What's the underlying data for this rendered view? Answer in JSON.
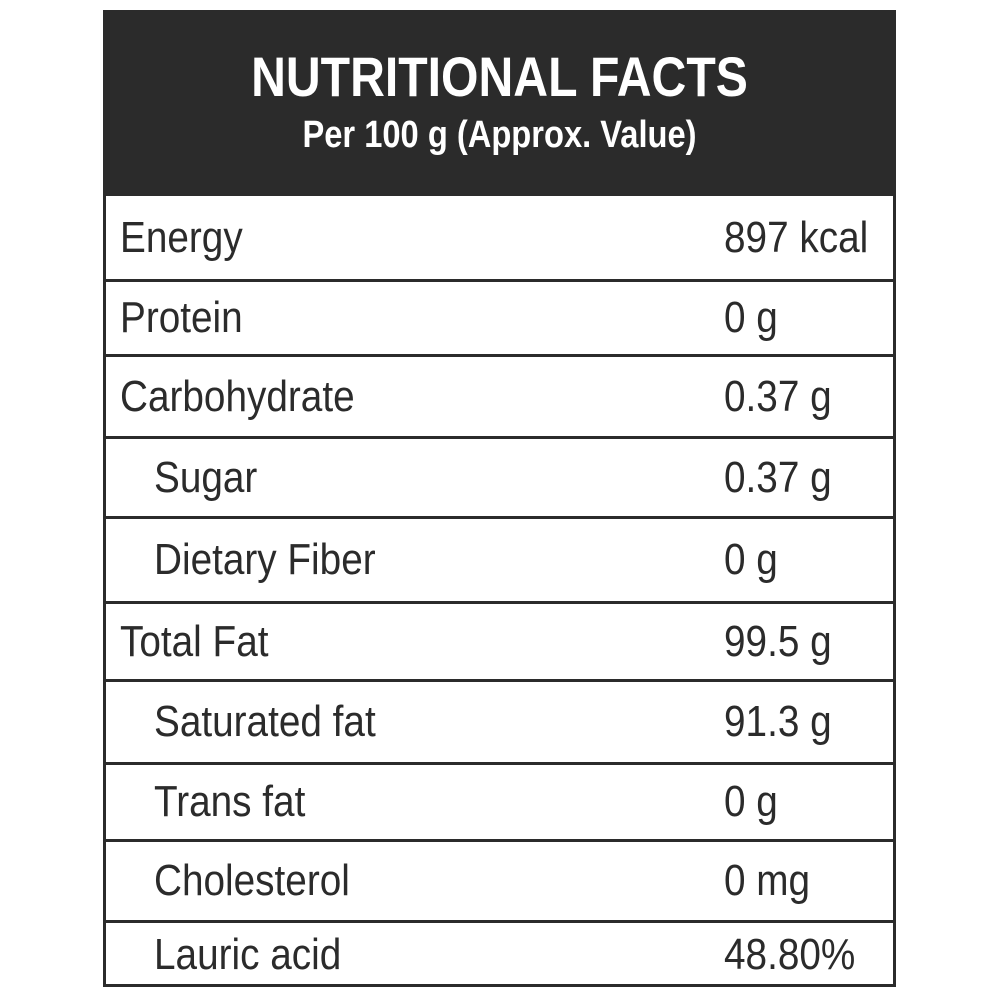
{
  "header": {
    "title": "NUTRITIONAL FACTS",
    "subtitle": "Per 100 g (Approx. Value)"
  },
  "rows": [
    {
      "name": "Energy",
      "value": "897 kcal"
    },
    {
      "name": "Protein",
      "value": "0 g"
    },
    {
      "name": "Carbohydrate",
      "value": "0.37 g"
    },
    {
      "name": "Sugar",
      "value": "0.37 g"
    },
    {
      "name": "Dietary Fiber",
      "value": "0 g"
    },
    {
      "name": "Total Fat",
      "value": "99.5 g"
    },
    {
      "name": "Saturated fat",
      "value": "91.3 g"
    },
    {
      "name": "Trans fat",
      "value": "0 g"
    },
    {
      "name": "Cholesterol",
      "value": "0 mg"
    },
    {
      "name": "Lauric acid",
      "value": "48.80%"
    }
  ],
  "colors": {
    "header_bg": "#2b2b2b",
    "header_text": "#ffffff",
    "border": "#2b2b2b",
    "text": "#2b2b2b"
  }
}
